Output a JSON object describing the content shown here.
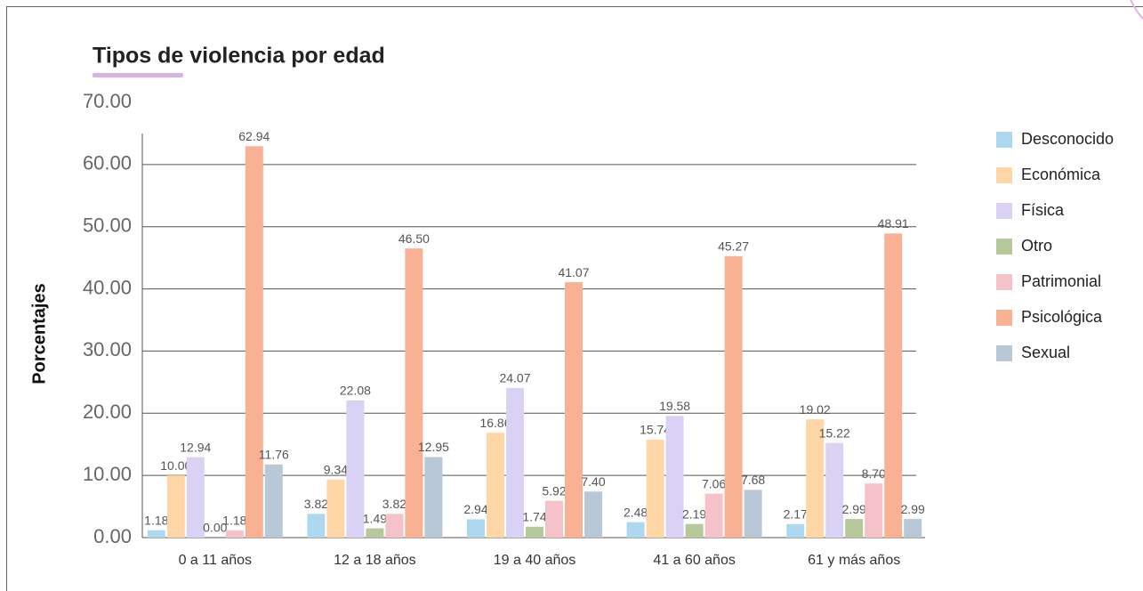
{
  "chart_data": {
    "type": "bar",
    "title": "Tipos de violencia por edad",
    "y_label": "Porcentajes",
    "categories": [
      "0 a 11 años",
      "12 a 18 años",
      "19 a 40 años",
      "41 a 60 años",
      "61 y más años"
    ],
    "series": [
      {
        "name": "Desconocido",
        "color": "#aed8f0",
        "values": [
          1.18,
          3.82,
          2.94,
          2.48,
          2.17
        ],
        "value_labels": [
          "1.18",
          "3.82",
          "2.94",
          "2.48",
          "2.17"
        ]
      },
      {
        "name": "Económica",
        "color": "#ffd6a5",
        "values": [
          10,
          9.34,
          16.86,
          15.74,
          19.02
        ],
        "value_labels": [
          "10.00",
          "9.34",
          "16.86",
          "15.74",
          "19.02"
        ]
      },
      {
        "name": "Física",
        "color": "#d9d2f5",
        "values": [
          12.94,
          22.08,
          24.07,
          19.58,
          15.22
        ],
        "value_labels": [
          "12.94",
          "22.08",
          "24.07",
          "19.58",
          "15.22"
        ]
      },
      {
        "name": "Otro",
        "color": "#b7c99a",
        "values": [
          0,
          1.49,
          1.74,
          2.19,
          2.99
        ],
        "value_labels": [
          "0.00",
          "1.49",
          "1.74",
          "2.19",
          "2.99"
        ]
      },
      {
        "name": "Patrimonial",
        "color": "#f4c2c8",
        "values": [
          1.18,
          3.82,
          5.92,
          7.06,
          8.7
        ],
        "value_labels": [
          "1.18",
          "3.82",
          "5.92",
          "7.06",
          "8.70"
        ]
      },
      {
        "name": "Psicológica",
        "color": "#f9b193",
        "values": [
          62.94,
          46.5,
          41.07,
          45.27,
          48.91
        ],
        "value_labels": [
          "62.94",
          "46.50",
          "41.07",
          "45.27",
          "48.91"
        ]
      },
      {
        "name": "Sexual",
        "color": "#b8c8d6",
        "values": [
          11.76,
          12.95,
          7.4,
          7.68,
          2.99
        ],
        "value_labels": [
          "11.76",
          "12.95",
          "7.40",
          "7.68",
          "2.99"
        ]
      }
    ],
    "ylim": [
      0,
      70
    ],
    "yticks": [
      {
        "value": 0,
        "label": "0.00"
      },
      {
        "value": 10,
        "label": "10.00"
      },
      {
        "value": 20,
        "label": "20.00"
      },
      {
        "value": 30,
        "label": "30.00"
      },
      {
        "value": 40,
        "label": "40.00"
      },
      {
        "value": 50,
        "label": "50.00"
      },
      {
        "value": 60,
        "label": "60.00"
      },
      {
        "value": 70,
        "label": "70.00"
      }
    ],
    "grid": true,
    "legend": "right"
  }
}
